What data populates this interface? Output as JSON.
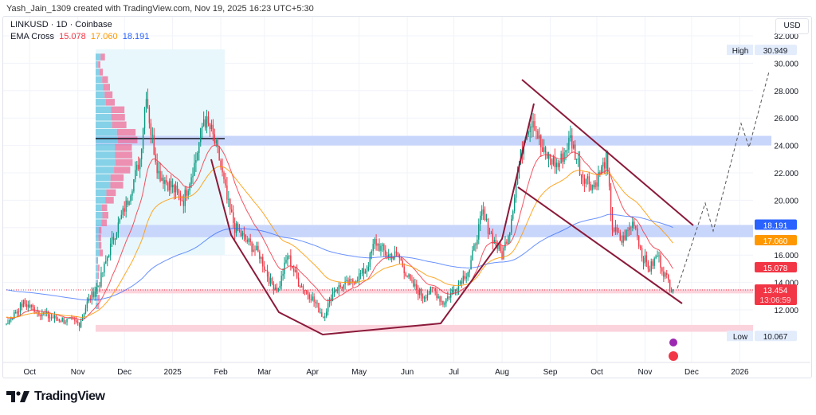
{
  "header": {
    "credit": "Yash_Jain_1309 created with TradingView.com, Nov 19, 2025 16:23 UTC+5:30",
    "symbol": "LINKUSD · 1D · Coinbase",
    "indicator": "EMA Cross",
    "ema_fast": "15.078",
    "ema_mid": "17.060",
    "ema_slow": "18.191"
  },
  "currency": "USD",
  "footer": {
    "brand": "TradingView"
  },
  "colors": {
    "up": "#089981",
    "down": "#f23645",
    "ema_fast": "#f23645",
    "ema_mid": "#ff9800",
    "ema_slow": "#2962ff",
    "drawing": "#8b1a3a"
  },
  "chart_data": {
    "type": "candlestick",
    "title": "LINKUSD · 1D · Coinbase",
    "start_date": "2024-09-16",
    "ylim": [
      9,
      33
    ],
    "y_ticks": [
      "32.000",
      "30.000",
      "28.000",
      "26.000",
      "24.000",
      "22.000",
      "20.000",
      "16.000",
      "14.000",
      "12.000"
    ],
    "y_tick_values": [
      32,
      30,
      28,
      26,
      24,
      22,
      20,
      16,
      14,
      12
    ],
    "x_labels": [
      {
        "label": "Oct",
        "day": 15
      },
      {
        "label": "Nov",
        "day": 46
      },
      {
        "label": "Dec",
        "day": 76
      },
      {
        "label": "2025",
        "day": 107
      },
      {
        "label": "Feb",
        "day": 138
      },
      {
        "label": "Mar",
        "day": 166
      },
      {
        "label": "Apr",
        "day": 197
      },
      {
        "label": "May",
        "day": 227
      },
      {
        "label": "Jun",
        "day": 258
      },
      {
        "label": "Jul",
        "day": 288
      },
      {
        "label": "Aug",
        "day": 319
      },
      {
        "label": "Sep",
        "day": 350
      },
      {
        "label": "Oct",
        "day": 380
      },
      {
        "label": "Nov",
        "day": 411
      },
      {
        "label": "Dec",
        "day": 441
      },
      {
        "label": "2026",
        "day": 472
      }
    ],
    "close_keypoints": [
      [
        0,
        11
      ],
      [
        11,
        12.5
      ],
      [
        27,
        11.5
      ],
      [
        47,
        11
      ],
      [
        52,
        12.5
      ],
      [
        60,
        14
      ],
      [
        68,
        17
      ],
      [
        78,
        20
      ],
      [
        86,
        23
      ],
      [
        90,
        28
      ],
      [
        93,
        25
      ],
      [
        98,
        22
      ],
      [
        106,
        21
      ],
      [
        114,
        20
      ],
      [
        122,
        23
      ],
      [
        127,
        26
      ],
      [
        132,
        25
      ],
      [
        137,
        23
      ],
      [
        142,
        20
      ],
      [
        147,
        18
      ],
      [
        155,
        17
      ],
      [
        163,
        16
      ],
      [
        170,
        14
      ],
      [
        175,
        13.5
      ],
      [
        181,
        16
      ],
      [
        188,
        14
      ],
      [
        196,
        13
      ],
      [
        204,
        11.5
      ],
      [
        211,
        13.5
      ],
      [
        222,
        14
      ],
      [
        232,
        15
      ],
      [
        237,
        17
      ],
      [
        245,
        16
      ],
      [
        252,
        16
      ],
      [
        260,
        14
      ],
      [
        268,
        13
      ],
      [
        275,
        13.5
      ],
      [
        281,
        12.5
      ],
      [
        288,
        13.5
      ],
      [
        298,
        15
      ],
      [
        306,
        19
      ],
      [
        314,
        17
      ],
      [
        319,
        16
      ],
      [
        324,
        18
      ],
      [
        329,
        22
      ],
      [
        334,
        25
      ],
      [
        339,
        26
      ],
      [
        345,
        23.5
      ],
      [
        355,
        22.5
      ],
      [
        363,
        24.5
      ],
      [
        370,
        22
      ],
      [
        378,
        21
      ],
      [
        386,
        23
      ],
      [
        390,
        18
      ],
      [
        396,
        17
      ],
      [
        404,
        18.5
      ],
      [
        409,
        16
      ],
      [
        414,
        15
      ],
      [
        419,
        16
      ],
      [
        424,
        14.5
      ],
      [
        429,
        13.454
      ]
    ],
    "price_labels": [
      {
        "label": "High",
        "value": "30.949",
        "num": 30.949
      },
      {
        "label": "",
        "value": "18.191",
        "num": 18.191,
        "color": "#2962ff"
      },
      {
        "label": "",
        "value": "17.060",
        "num": 17.06,
        "color": "#ff9800"
      },
      {
        "label": "",
        "value": "15.078",
        "num": 15.078,
        "color": "#f23645"
      },
      {
        "label": "",
        "value": "13.454",
        "num": 13.454,
        "color": "#f23645",
        "sub": "13:06:59"
      },
      {
        "label": "Low",
        "value": "10.067",
        "num": 10.067
      }
    ],
    "zones": [
      [
        24.0,
        24.7,
        "#c9d6fb"
      ],
      [
        17.3,
        18.2,
        "#c9d6fb"
      ],
      [
        13.2,
        13.5,
        "#fbd3dc"
      ],
      [
        10.4,
        10.9,
        "#fbd3dc"
      ]
    ],
    "ema_periods": [
      20,
      50,
      200
    ]
  }
}
